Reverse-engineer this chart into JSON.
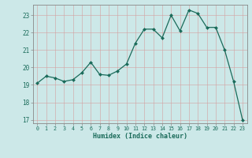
{
  "x": [
    0,
    1,
    2,
    3,
    4,
    5,
    6,
    7,
    8,
    9,
    10,
    11,
    12,
    13,
    14,
    15,
    16,
    17,
    18,
    19,
    20,
    21,
    22,
    23
  ],
  "y": [
    19.1,
    19.5,
    19.4,
    19.2,
    19.3,
    19.7,
    20.3,
    19.6,
    19.55,
    19.8,
    20.2,
    21.4,
    22.2,
    22.2,
    21.7,
    23.0,
    22.1,
    23.3,
    23.1,
    22.3,
    22.3,
    21.0,
    19.2,
    17.0
  ],
  "xlabel": "Humidex (Indice chaleur)",
  "xlim": [
    -0.5,
    23.5
  ],
  "ylim": [
    16.8,
    23.6
  ],
  "yticks": [
    17,
    18,
    19,
    20,
    21,
    22,
    23
  ],
  "xticks": [
    0,
    1,
    2,
    3,
    4,
    5,
    6,
    7,
    8,
    9,
    10,
    11,
    12,
    13,
    14,
    15,
    16,
    17,
    18,
    19,
    20,
    21,
    22,
    23
  ],
  "line_color": "#1a6b5a",
  "marker_color": "#1a6b5a",
  "bg_color": "#cce8e8",
  "grid_major_color": "#b8d4d4",
  "grid_minor_color": "#d4e8e8",
  "axes_color": "#555555",
  "tick_color": "#1a6b5a",
  "label_color": "#1a6b5a"
}
